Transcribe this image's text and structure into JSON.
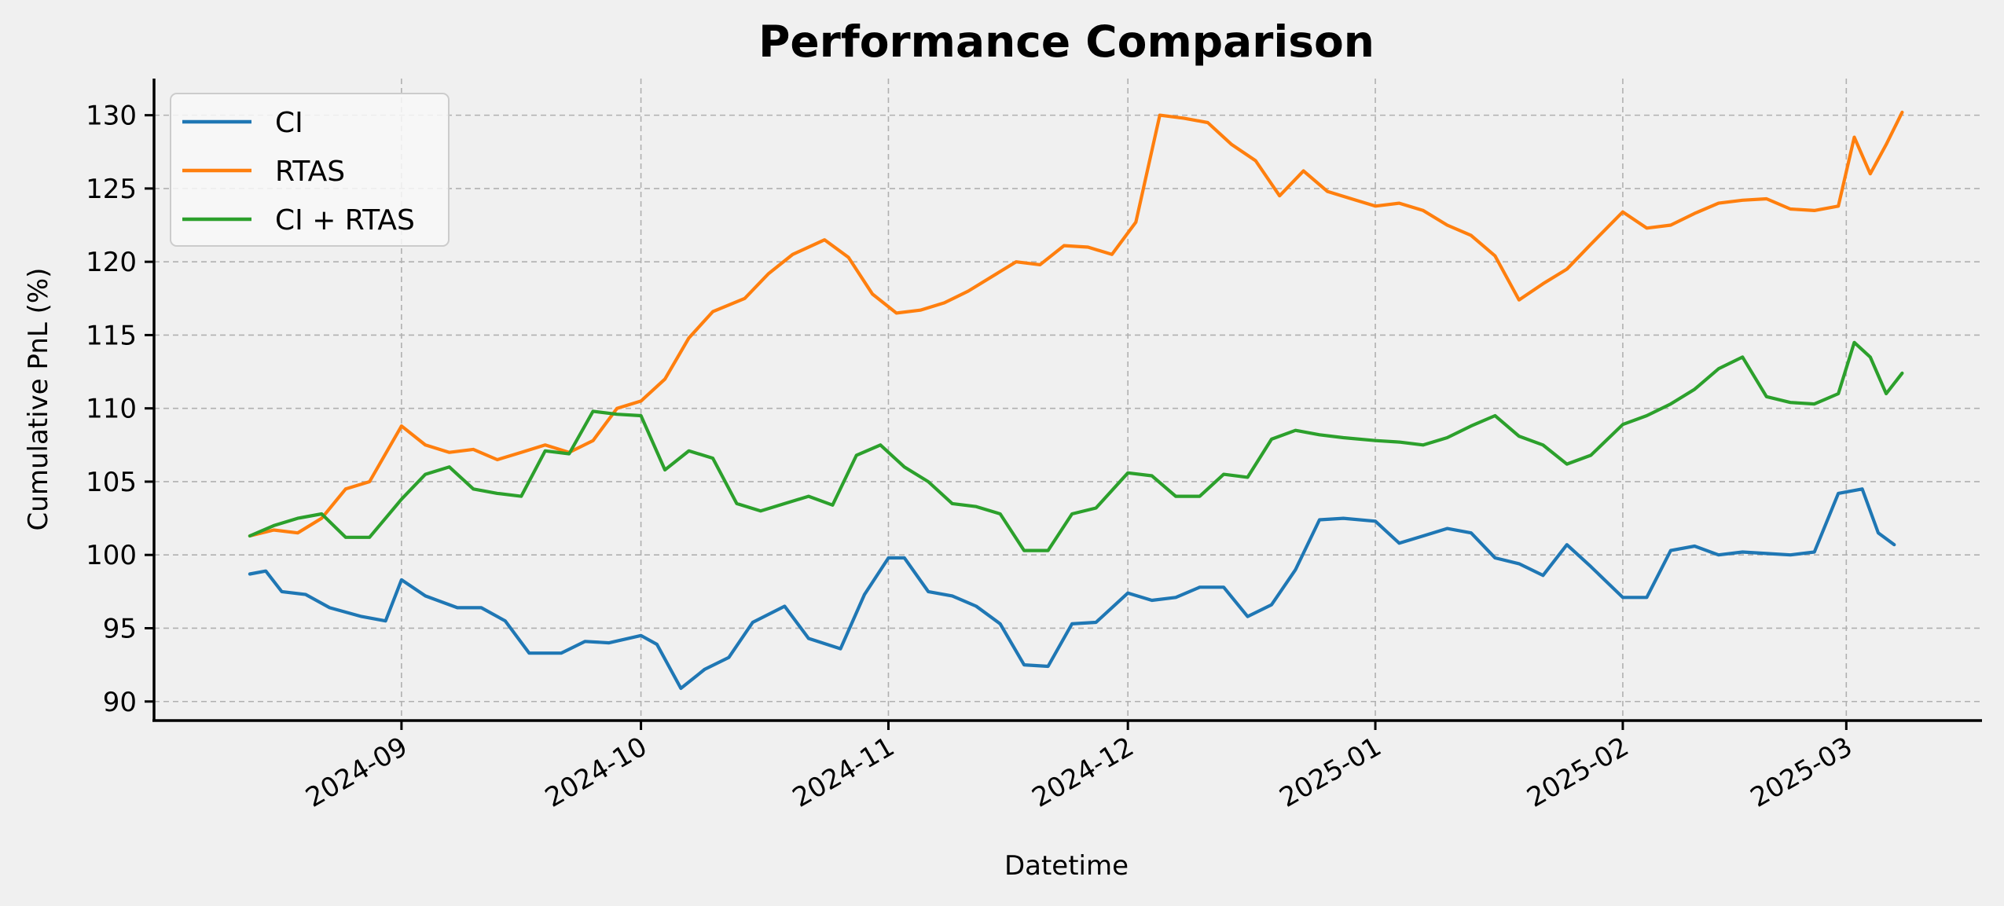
{
  "chart_data": {
    "type": "line",
    "title": "Performance Comparison",
    "xlabel": "Datetime",
    "ylabel": "Cumulative PnL (%)",
    "x_type": "date",
    "xlim": [
      "2024-08-01",
      "2025-03-18"
    ],
    "ylim": [
      88.7,
      132.5
    ],
    "x_ticks": [
      "2024-09",
      "2024-10",
      "2024-11",
      "2024-12",
      "2025-01",
      "2025-02",
      "2025-03"
    ],
    "y_ticks": [
      90,
      95,
      100,
      105,
      110,
      115,
      120,
      125,
      130
    ],
    "grid": true,
    "legend": "upper left",
    "series": [
      {
        "name": "CI",
        "color": "#1f77b4",
        "x": [
          "2024-08-13",
          "2024-08-15",
          "2024-08-17",
          "2024-08-20",
          "2024-08-23",
          "2024-08-27",
          "2024-08-30",
          "2024-09-01",
          "2024-09-04",
          "2024-09-08",
          "2024-09-11",
          "2024-09-14",
          "2024-09-17",
          "2024-09-21",
          "2024-09-24",
          "2024-09-27",
          "2024-10-01",
          "2024-10-03",
          "2024-10-06",
          "2024-10-09",
          "2024-10-12",
          "2024-10-15",
          "2024-10-19",
          "2024-10-22",
          "2024-10-26",
          "2024-10-29",
          "2024-11-01",
          "2024-11-03",
          "2024-11-06",
          "2024-11-09",
          "2024-11-12",
          "2024-11-15",
          "2024-11-18",
          "2024-11-21",
          "2024-11-24",
          "2024-11-27",
          "2024-12-01",
          "2024-12-04",
          "2024-12-07",
          "2024-12-10",
          "2024-12-13",
          "2024-12-16",
          "2024-12-19",
          "2024-12-22",
          "2024-12-25",
          "2024-12-28",
          "2025-01-01",
          "2025-01-04",
          "2025-01-07",
          "2025-01-10",
          "2025-01-13",
          "2025-01-16",
          "2025-01-19",
          "2025-01-22",
          "2025-01-25",
          "2025-01-28",
          "2025-02-01",
          "2025-02-04",
          "2025-02-07",
          "2025-02-10",
          "2025-02-13",
          "2025-02-16",
          "2025-02-19",
          "2025-02-22",
          "2025-02-25",
          "2025-02-28",
          "2025-03-03",
          "2025-03-05",
          "2025-03-07"
        ],
        "values": [
          98.7,
          98.9,
          97.5,
          97.3,
          96.4,
          95.8,
          95.5,
          98.3,
          97.2,
          96.4,
          96.4,
          95.5,
          93.3,
          93.3,
          94.1,
          94.0,
          94.5,
          93.9,
          90.9,
          92.2,
          93.0,
          95.4,
          96.5,
          94.3,
          93.6,
          97.3,
          99.8,
          99.8,
          97.5,
          97.2,
          96.5,
          95.3,
          92.5,
          92.4,
          95.3,
          95.4,
          97.4,
          96.9,
          97.1,
          97.8,
          97.8,
          95.8,
          96.6,
          99.0,
          102.4,
          102.5,
          102.3,
          100.8,
          101.3,
          101.8,
          101.5,
          99.8,
          99.4,
          98.6,
          100.7,
          99.2,
          97.1,
          97.1,
          100.3,
          100.6,
          100.0,
          100.2,
          100.1,
          100.0,
          100.2,
          104.2,
          104.5,
          101.5,
          100.7
        ]
      },
      {
        "name": "RTAS",
        "color": "#ff7f0e",
        "x": [
          "2024-08-13",
          "2024-08-16",
          "2024-08-19",
          "2024-08-22",
          "2024-08-25",
          "2024-08-28",
          "2024-09-01",
          "2024-09-04",
          "2024-09-07",
          "2024-09-10",
          "2024-09-13",
          "2024-09-16",
          "2024-09-19",
          "2024-09-22",
          "2024-09-25",
          "2024-09-28",
          "2024-10-01",
          "2024-10-04",
          "2024-10-07",
          "2024-10-10",
          "2024-10-14",
          "2024-10-17",
          "2024-10-20",
          "2024-10-24",
          "2024-10-27",
          "2024-10-30",
          "2024-11-02",
          "2024-11-05",
          "2024-11-08",
          "2024-11-11",
          "2024-11-14",
          "2024-11-17",
          "2024-11-20",
          "2024-11-23",
          "2024-11-26",
          "2024-11-29",
          "2024-12-02",
          "2024-12-05",
          "2024-12-08",
          "2024-12-11",
          "2024-12-14",
          "2024-12-17",
          "2024-12-20",
          "2024-12-23",
          "2024-12-26",
          "2024-12-29",
          "2025-01-01",
          "2025-01-04",
          "2025-01-07",
          "2025-01-10",
          "2025-01-13",
          "2025-01-16",
          "2025-01-19",
          "2025-01-22",
          "2025-01-25",
          "2025-01-28",
          "2025-02-01",
          "2025-02-04",
          "2025-02-07",
          "2025-02-10",
          "2025-02-13",
          "2025-02-16",
          "2025-02-19",
          "2025-02-22",
          "2025-02-25",
          "2025-02-28",
          "2025-03-02",
          "2025-03-04",
          "2025-03-06",
          "2025-03-08"
        ],
        "values": [
          101.3,
          101.7,
          101.5,
          102.5,
          104.5,
          105.0,
          108.8,
          107.5,
          107.0,
          107.2,
          106.5,
          107.0,
          107.5,
          107.0,
          107.8,
          110.0,
          110.5,
          112.0,
          114.8,
          116.6,
          117.5,
          119.2,
          120.5,
          121.5,
          120.3,
          117.8,
          116.5,
          116.7,
          117.2,
          118.0,
          119.0,
          120.0,
          119.8,
          121.1,
          121.0,
          120.5,
          122.7,
          130.0,
          129.8,
          129.5,
          128.0,
          126.9,
          124.5,
          126.2,
          124.8,
          124.3,
          123.8,
          124.0,
          123.5,
          122.5,
          121.8,
          120.4,
          117.4,
          118.5,
          119.5,
          121.2,
          123.4,
          122.3,
          122.5,
          123.3,
          124.0,
          124.2,
          124.3,
          123.6,
          123.5,
          123.8,
          128.5,
          126.0,
          128.0,
          130.2
        ]
      },
      {
        "name": "CI + RTAS",
        "color": "#2ca02c",
        "x": [
          "2024-08-13",
          "2024-08-16",
          "2024-08-19",
          "2024-08-22",
          "2024-08-25",
          "2024-08-28",
          "2024-09-01",
          "2024-09-04",
          "2024-09-07",
          "2024-09-10",
          "2024-09-13",
          "2024-09-16",
          "2024-09-19",
          "2024-09-22",
          "2024-09-25",
          "2024-09-28",
          "2024-10-01",
          "2024-10-04",
          "2024-10-07",
          "2024-10-10",
          "2024-10-13",
          "2024-10-16",
          "2024-10-19",
          "2024-10-22",
          "2024-10-25",
          "2024-10-28",
          "2024-10-31",
          "2024-11-03",
          "2024-11-06",
          "2024-11-09",
          "2024-11-12",
          "2024-11-15",
          "2024-11-18",
          "2024-11-21",
          "2024-11-24",
          "2024-11-27",
          "2024-12-01",
          "2024-12-04",
          "2024-12-07",
          "2024-12-10",
          "2024-12-13",
          "2024-12-16",
          "2024-12-19",
          "2024-12-22",
          "2024-12-25",
          "2024-12-28",
          "2025-01-01",
          "2025-01-04",
          "2025-01-07",
          "2025-01-10",
          "2025-01-13",
          "2025-01-16",
          "2025-01-19",
          "2025-01-22",
          "2025-01-25",
          "2025-01-28",
          "2025-02-01",
          "2025-02-04",
          "2025-02-07",
          "2025-02-10",
          "2025-02-13",
          "2025-02-16",
          "2025-02-19",
          "2025-02-22",
          "2025-02-25",
          "2025-02-28",
          "2025-03-02",
          "2025-03-04",
          "2025-03-06",
          "2025-03-08"
        ],
        "values": [
          101.3,
          102.0,
          102.5,
          102.8,
          101.2,
          101.2,
          103.8,
          105.5,
          106.0,
          104.5,
          104.2,
          104.0,
          107.1,
          106.9,
          109.8,
          109.6,
          109.5,
          105.8,
          107.1,
          106.6,
          103.5,
          103.0,
          103.5,
          104.0,
          103.4,
          106.8,
          107.5,
          106.0,
          105.0,
          103.5,
          103.3,
          102.8,
          100.3,
          100.3,
          102.8,
          103.2,
          105.6,
          105.4,
          104.0,
          104.0,
          105.5,
          105.3,
          107.9,
          108.5,
          108.2,
          108.0,
          107.8,
          107.7,
          107.5,
          108.0,
          108.8,
          109.5,
          108.1,
          107.5,
          106.2,
          106.8,
          108.9,
          109.5,
          110.3,
          111.3,
          112.7,
          113.5,
          110.8,
          110.4,
          110.3,
          111.0,
          114.5,
          113.5,
          111.0,
          112.4
        ]
      }
    ]
  }
}
